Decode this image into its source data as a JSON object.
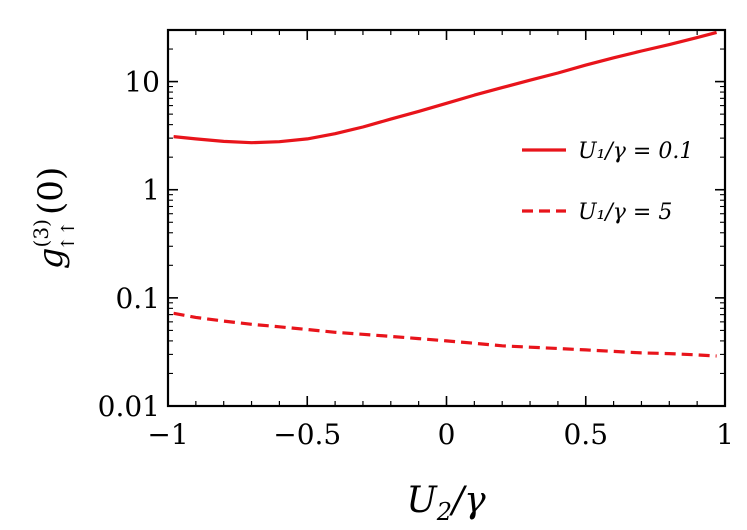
{
  "chart_data": {
    "type": "line",
    "xlabel": "U₂/γ",
    "ylabel": "g↑↑(3)(0)",
    "xlim": [
      -1,
      1
    ],
    "ylim": [
      0.01,
      30
    ],
    "y_scale": "log",
    "grid": false,
    "legend_position": "right",
    "x_ticks": [
      {
        "value": -1,
        "label": "−1"
      },
      {
        "value": -0.5,
        "label": "−0.5"
      },
      {
        "value": 0,
        "label": "0"
      },
      {
        "value": 0.5,
        "label": "0.5"
      },
      {
        "value": 1,
        "label": "1"
      }
    ],
    "y_ticks": [
      {
        "value": 0.01,
        "label": "0.01"
      },
      {
        "value": 0.1,
        "label": "0.1"
      },
      {
        "value": 1,
        "label": "1"
      },
      {
        "value": 10,
        "label": "10"
      }
    ],
    "series": [
      {
        "name": "U₁/γ = 0.1",
        "color": "#e8141b",
        "dash": "solid",
        "x": [
          -0.98,
          -0.9,
          -0.8,
          -0.7,
          -0.6,
          -0.5,
          -0.4,
          -0.3,
          -0.2,
          -0.1,
          0.0,
          0.1,
          0.2,
          0.3,
          0.4,
          0.5,
          0.6,
          0.7,
          0.8,
          0.9,
          0.97
        ],
        "y": [
          3.1,
          2.95,
          2.8,
          2.72,
          2.78,
          2.95,
          3.3,
          3.8,
          4.5,
          5.3,
          6.3,
          7.5,
          8.8,
          10.3,
          12.0,
          14.2,
          16.6,
          19.2,
          22.0,
          25.5,
          28.5
        ]
      },
      {
        "name": "U₁/γ = 5",
        "color": "#e8141b",
        "dash": "dashed",
        "x": [
          -0.98,
          -0.9,
          -0.8,
          -0.7,
          -0.6,
          -0.5,
          -0.4,
          -0.3,
          -0.2,
          -0.1,
          0.0,
          0.1,
          0.2,
          0.3,
          0.4,
          0.5,
          0.6,
          0.7,
          0.8,
          0.9,
          0.97
        ],
        "y": [
          0.072,
          0.066,
          0.061,
          0.057,
          0.054,
          0.051,
          0.048,
          0.046,
          0.044,
          0.042,
          0.04,
          0.038,
          0.036,
          0.035,
          0.034,
          0.033,
          0.032,
          0.031,
          0.0305,
          0.0297,
          0.029
        ]
      }
    ]
  }
}
